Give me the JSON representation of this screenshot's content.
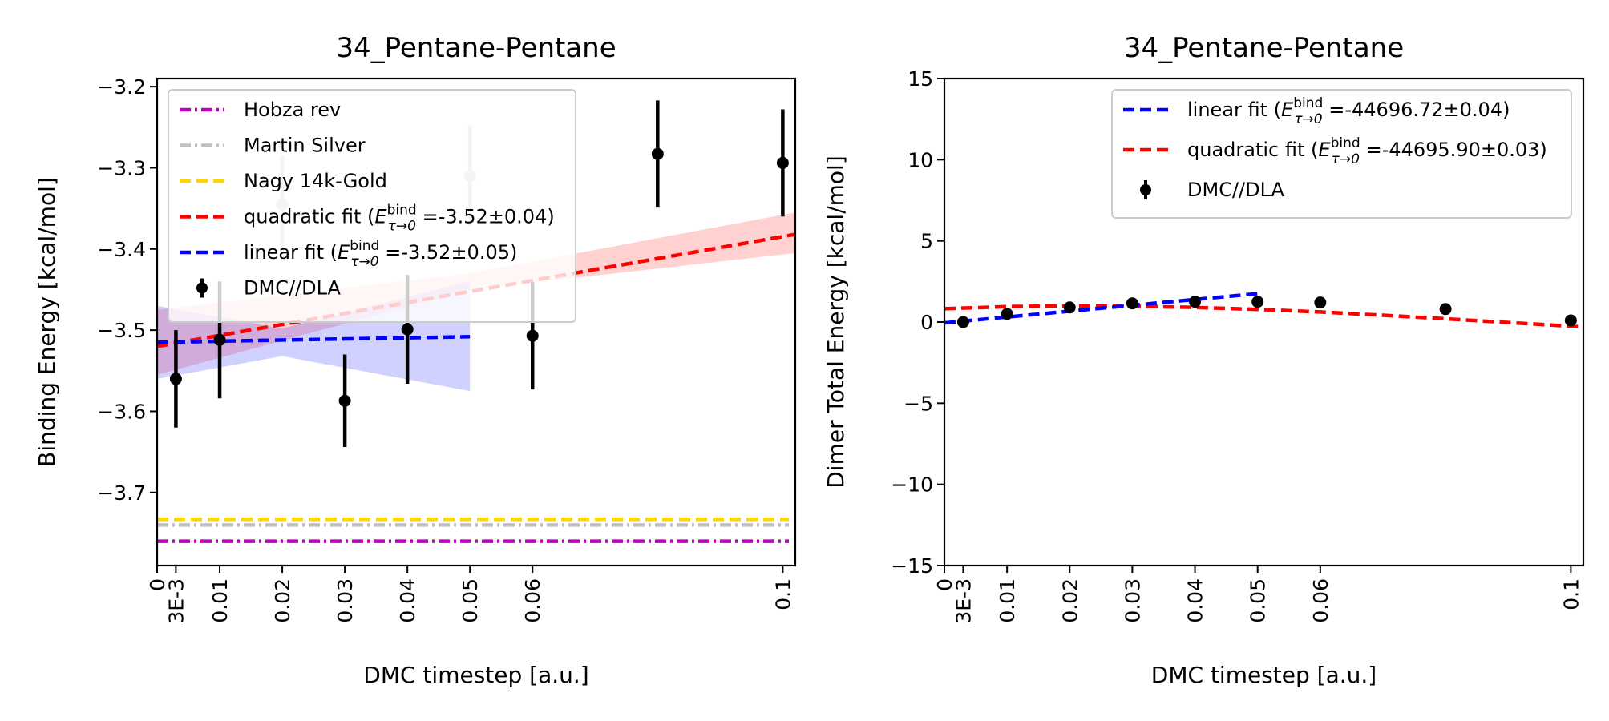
{
  "chart_data": [
    {
      "type": "line",
      "title": "34_Pentane-Pentane",
      "xlabel": "DMC timestep [a.u.]",
      "ylabel": "Binding Energy [kcal/mol]",
      "xlim": [
        0,
        0.102
      ],
      "ylim": [
        -3.79,
        -3.19
      ],
      "xticks": [
        {
          "v": 0,
          "label": "0"
        },
        {
          "v": 0.003,
          "label": "3E-3"
        },
        {
          "v": 0.01,
          "label": "0.01"
        },
        {
          "v": 0.02,
          "label": "0.02"
        },
        {
          "v": 0.03,
          "label": "0.03"
        },
        {
          "v": 0.04,
          "label": "0.04"
        },
        {
          "v": 0.05,
          "label": "0.05"
        },
        {
          "v": 0.06,
          "label": "0.06"
        },
        {
          "v": 0.1,
          "label": "0.1"
        }
      ],
      "yticks": [
        {
          "v": -3.7,
          "label": "−3.7"
        },
        {
          "v": -3.6,
          "label": "−3.6"
        },
        {
          "v": -3.5,
          "label": "−3.5"
        },
        {
          "v": -3.4,
          "label": "−3.4"
        },
        {
          "v": -3.3,
          "label": "−3.3"
        },
        {
          "v": -3.2,
          "label": "−3.2"
        }
      ],
      "reference_lines": [
        {
          "name": "Hobza rev",
          "y": -3.76,
          "color": "#bf00bf",
          "dash": "dashdot"
        },
        {
          "name": "Martin Silver",
          "y": -3.74,
          "color": "#c0c0c0",
          "dash": "dashdot"
        },
        {
          "name": "Nagy 14k-Gold",
          "y": -3.733,
          "color": "#ffd700",
          "dash": "dashed"
        }
      ],
      "fits": [
        {
          "name": "quadratic fit",
          "value_label": "=-3.52±0.04",
          "color": "#ff0000",
          "x": [
            0,
            0.102
          ],
          "y": [
            -3.52,
            -3.382
          ],
          "band": {
            "x": [
              0,
              0.05,
              0.102
            ],
            "lower": [
              -3.555,
              -3.45,
              -3.405
            ],
            "upper": [
              -3.475,
              -3.43,
              -3.355
            ]
          }
        },
        {
          "name": "linear fit",
          "value_label": "=-3.52±0.05",
          "color": "#0000ff",
          "x": [
            0,
            0.05
          ],
          "y": [
            -3.515,
            -3.508
          ],
          "band": {
            "x": [
              0,
              0.02,
              0.05
            ],
            "lower": [
              -3.56,
              -3.532,
              -3.575
            ],
            "upper": [
              -3.47,
              -3.498,
              -3.44
            ]
          }
        }
      ],
      "points": {
        "name": "DMC//DLA",
        "x": [
          0.003,
          0.01,
          0.02,
          0.03,
          0.04,
          0.05,
          0.06,
          0.08,
          0.1
        ],
        "y": [
          -3.56,
          -3.512,
          -3.345,
          -3.587,
          -3.499,
          -3.31,
          -3.507,
          -3.283,
          -3.294
        ],
        "err": [
          0.06,
          0.072,
          0.06,
          0.057,
          0.067,
          0.062,
          0.066,
          0.066,
          0.066
        ],
        "colors": [
          "#000000",
          "#000000",
          "#c8c8c8",
          "#000000",
          "#000000",
          "#c8c8c8",
          "#000000",
          "#000000",
          "#000000"
        ]
      },
      "legend": {
        "position": "upper-left",
        "items": [
          {
            "label": "Hobza rev",
            "color": "#bf00bf",
            "dash": "dashdot"
          },
          {
            "label": "Martin Silver",
            "color": "#c0c0c0",
            "dash": "dashdot"
          },
          {
            "label": "Nagy 14k-Gold",
            "color": "#ffd700",
            "dash": "dashed"
          },
          {
            "label": "quadratic fit (",
            "math": "E",
            "sup": "bind",
            "sub": "τ→0",
            "tail": " =-3.52±0.04)",
            "color": "#ff0000",
            "dash": "dashed"
          },
          {
            "label": "linear fit (",
            "math": "E",
            "sup": "bind",
            "sub": "τ→0",
            "tail": " =-3.52±0.05)",
            "color": "#0000ff",
            "dash": "dashed"
          },
          {
            "label": "DMC//DLA",
            "color": "#000000",
            "marker": "errorbar"
          }
        ]
      }
    },
    {
      "type": "line",
      "title": "34_Pentane-Pentane",
      "xlabel": "DMC timestep [a.u.]",
      "ylabel": "Dimer Total Energy [kcal/mol]",
      "xlim": [
        0,
        0.102
      ],
      "ylim": [
        -15,
        15
      ],
      "xticks": [
        {
          "v": 0,
          "label": "0"
        },
        {
          "v": 0.003,
          "label": "3E-3"
        },
        {
          "v": 0.01,
          "label": "0.01"
        },
        {
          "v": 0.02,
          "label": "0.02"
        },
        {
          "v": 0.03,
          "label": "0.03"
        },
        {
          "v": 0.04,
          "label": "0.04"
        },
        {
          "v": 0.05,
          "label": "0.05"
        },
        {
          "v": 0.06,
          "label": "0.06"
        },
        {
          "v": 0.1,
          "label": "0.1"
        }
      ],
      "yticks": [
        {
          "v": -15,
          "label": "−15"
        },
        {
          "v": -10,
          "label": "−10"
        },
        {
          "v": -5,
          "label": "−5"
        },
        {
          "v": 0,
          "label": "0"
        },
        {
          "v": 5,
          "label": "5"
        },
        {
          "v": 10,
          "label": "10"
        },
        {
          "v": 15,
          "label": "15"
        }
      ],
      "reference_lines": [],
      "fits": [
        {
          "name": "quadratic fit",
          "value_label": "=-44695.90±0.03",
          "color": "#ff0000",
          "x": [
            0,
            0.01,
            0.02,
            0.03,
            0.04,
            0.05,
            0.06,
            0.07,
            0.08,
            0.09,
            0.102
          ],
          "y": [
            0.82,
            0.95,
            1.0,
            0.98,
            0.9,
            0.78,
            0.62,
            0.42,
            0.2,
            -0.03,
            -0.3
          ]
        },
        {
          "name": "linear fit",
          "value_label": "=-44696.72±0.04",
          "color": "#0000ff",
          "x": [
            0,
            0.05
          ],
          "y": [
            -0.05,
            1.75
          ]
        }
      ],
      "points": {
        "name": "DMC//DLA",
        "x": [
          0.003,
          0.01,
          0.02,
          0.03,
          0.04,
          0.05,
          0.06,
          0.08,
          0.1
        ],
        "y": [
          0.0,
          0.5,
          0.9,
          1.15,
          1.25,
          1.25,
          1.2,
          0.8,
          0.1
        ],
        "err": [
          0.08,
          0.08,
          0.08,
          0.08,
          0.08,
          0.08,
          0.08,
          0.08,
          0.08
        ],
        "colors": [
          "#000000",
          "#000000",
          "#000000",
          "#000000",
          "#000000",
          "#000000",
          "#000000",
          "#000000",
          "#000000"
        ]
      },
      "legend": {
        "position": "upper-right",
        "items": [
          {
            "label": "linear fit (",
            "math": "E",
            "sup": "bind",
            "sub": "τ→0",
            "tail": " =-44696.72±0.04)",
            "color": "#0000ff",
            "dash": "dashed"
          },
          {
            "label": "quadratic fit (",
            "math": "E",
            "sup": "bind",
            "sub": "τ→0",
            "tail": " =-44695.90±0.03)",
            "color": "#ff0000",
            "dash": "dashed"
          },
          {
            "label": "DMC//DLA",
            "color": "#000000",
            "marker": "errorbar"
          }
        ]
      }
    }
  ]
}
